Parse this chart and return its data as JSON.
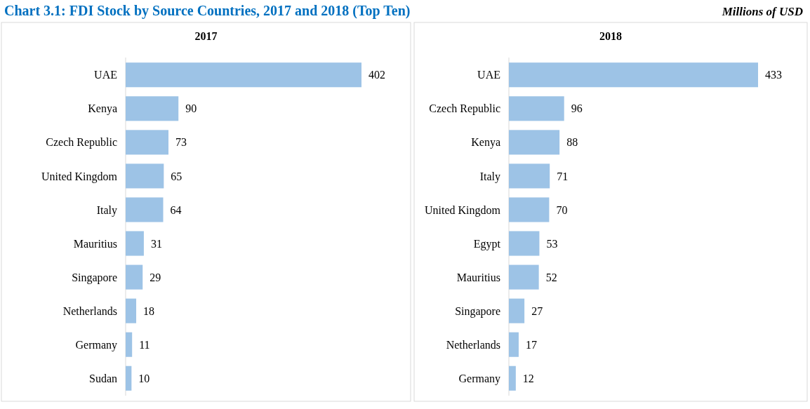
{
  "chart_data": [
    {
      "type": "other",
      "title": "Chart 3.1: FDI Stock by Source Countries, 2017 and 2018 (Top Ten)",
      "subtitle": "Millions of USD"
    },
    {
      "type": "bar",
      "orientation": "horizontal",
      "title": "2017",
      "categories": [
        "UAE",
        "Kenya",
        "Czech Republic",
        "United Kingdom",
        "Italy",
        "Mauritius",
        "Singapore",
        "Netherlands",
        "Germany",
        "Sudan"
      ],
      "values": [
        402,
        90,
        73,
        65,
        64,
        31,
        29,
        18,
        11,
        10
      ],
      "color": "#9dc3e6",
      "data_labels": true
    },
    {
      "type": "bar",
      "orientation": "horizontal",
      "title": "2018",
      "categories": [
        "UAE",
        "Czech Republic",
        "Kenya",
        "Italy",
        "United Kingdom",
        "Egypt",
        "Mauritius",
        "Singapore",
        "Netherlands",
        "Germany"
      ],
      "values": [
        433,
        96,
        88,
        71,
        70,
        53,
        52,
        27,
        17,
        12
      ],
      "color": "#9dc3e6",
      "data_labels": true
    }
  ]
}
